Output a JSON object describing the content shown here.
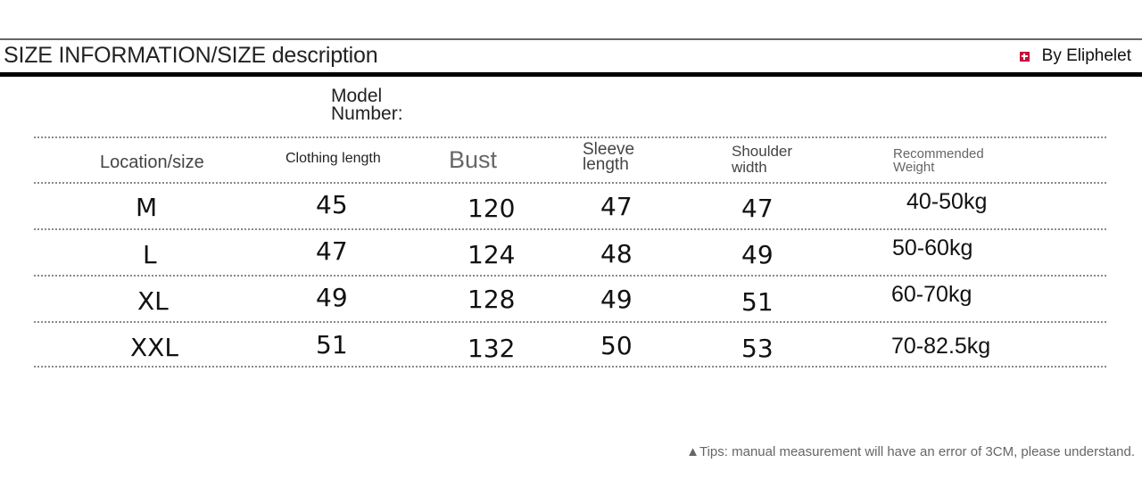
{
  "header": {
    "title": "SIZE INFORMATION/SIZE description",
    "brand": "By Eliphelet"
  },
  "model": {
    "line1": "Model",
    "line2": "Number:"
  },
  "columns": {
    "location": "Location/size",
    "length": "Clothing length",
    "bust": "Bust",
    "sleeve_1": "Sleeve",
    "sleeve_2": "length",
    "shoulder_1": "Shoulder",
    "shoulder_2": "width",
    "weight_1": "Recommended",
    "weight_2": "Weight"
  },
  "rows": [
    {
      "size": "M",
      "length": "45",
      "bust": "120",
      "sleeve": "47",
      "shoulder": "47",
      "weight": "40-50kg"
    },
    {
      "size": "L",
      "length": "47",
      "bust": "124",
      "sleeve": "48",
      "shoulder": "49",
      "weight": "50-60kg"
    },
    {
      "size": "XL",
      "length": "49",
      "bust": "128",
      "sleeve": "49",
      "shoulder": "51",
      "weight": "60-70kg"
    },
    {
      "size": "XXL",
      "length": "51",
      "bust": "132",
      "sleeve": "50",
      "shoulder": "53",
      "weight": "70-82.5kg"
    }
  ],
  "tips": "▲Tips: manual measurement will have an error of 3CM, please understand."
}
